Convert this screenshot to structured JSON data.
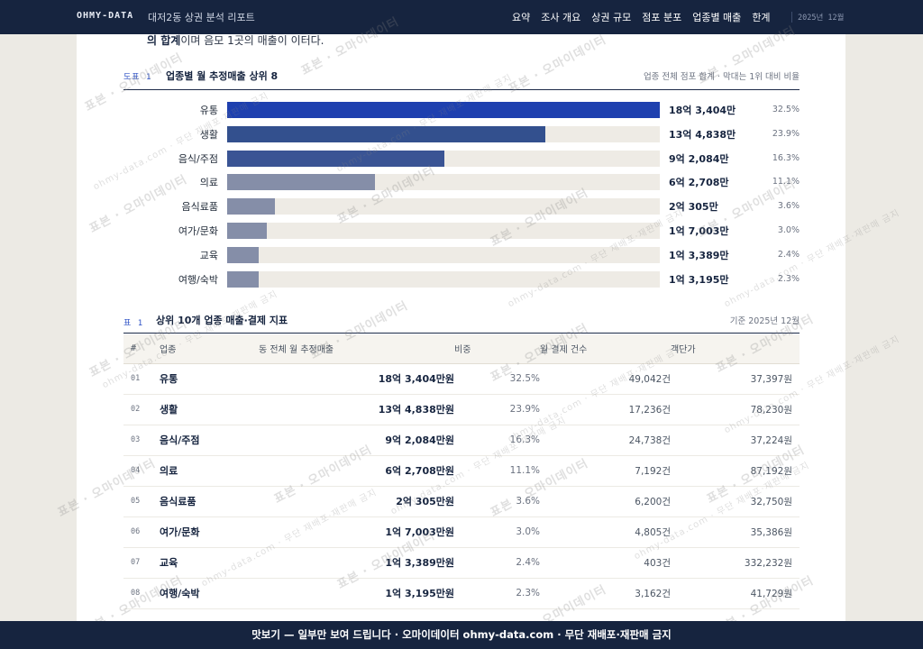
{
  "header": {
    "brand": "OHMY-DATA",
    "doc_title": "대저2동 상권 분석 리포트",
    "nav": [
      "요약",
      "조사 개요",
      "상권 규모",
      "점포 분포",
      "업종별 매출",
      "한계"
    ],
    "date": "2025년 12월"
  },
  "lead": {
    "bold": "의 합계",
    "rest": "이며 음모 1곳의 매출이 이터다."
  },
  "figure": {
    "tag": "도표 1",
    "title": "업종별 월 추정매출 상위 8",
    "note": "업종 전체 점포 합계 · 막대는 1위 대비 비율"
  },
  "chart_data": {
    "type": "bar",
    "categories": [
      "유통",
      "생활",
      "음식/주점",
      "의료",
      "음식료품",
      "여가/문화",
      "교육",
      "여행/숙박"
    ],
    "values": [
      1834040000,
      1348380000,
      920840000,
      627080000,
      203050000,
      170030000,
      133890000,
      131950000
    ],
    "value_labels": [
      "18억 3,404만",
      "13억 4,838만",
      "9억 2,084만",
      "6억 2,708만",
      "2억 305만",
      "1억 7,003만",
      "1억 3,389만",
      "1억 3,195만"
    ],
    "shares": [
      "32.5%",
      "23.9%",
      "16.3%",
      "11.1%",
      "3.6%",
      "3.0%",
      "2.4%",
      "2.3%"
    ],
    "colors": [
      "#1e40af",
      "#33508e",
      "#3a5494",
      "#858ea8",
      "#858ea8",
      "#858ea8",
      "#858ea8",
      "#858ea8"
    ],
    "title": "업종별 월 추정매출 상위 8"
  },
  "table": {
    "tag": "표 1",
    "title": "상위 10개 업종 매출·결제 지표",
    "note": "기준 2025년 12월",
    "columns": [
      "#",
      "업종",
      "동 전체 월 추정매출",
      "비중",
      "월 결제 건수",
      "객단가"
    ],
    "rows": [
      [
        "01",
        "유통",
        "18억 3,404만원",
        "32.5%",
        "49,042건",
        "37,397원"
      ],
      [
        "02",
        "생활",
        "13억 4,838만원",
        "23.9%",
        "17,236건",
        "78,230원"
      ],
      [
        "03",
        "음식/주점",
        "9억 2,084만원",
        "16.3%",
        "24,738건",
        "37,224원"
      ],
      [
        "04",
        "의료",
        "6억 2,708만원",
        "11.1%",
        "7,192건",
        "87,192원"
      ],
      [
        "05",
        "음식료품",
        "2억 305만원",
        "3.6%",
        "6,200건",
        "32,750원"
      ],
      [
        "06",
        "여가/문화",
        "1억 7,003만원",
        "3.0%",
        "4,805건",
        "35,386원"
      ],
      [
        "07",
        "교육",
        "1억 3,389만원",
        "2.4%",
        "403건",
        "332,232원"
      ],
      [
        "08",
        "여행/숙박",
        "1억 3,195만원",
        "2.3%",
        "3,162건",
        "41,729원"
      ]
    ]
  },
  "watermark": {
    "main": "표본 · 오마이데이터",
    "small": "ohmy-data.com · 무단 재배포·재판매 금지"
  },
  "footer": {
    "text": "맛보기 — 일부만 보여 드립니다 · 오마이데이터 ohmy-data.com · 무단 재배포·재판매 금지"
  }
}
